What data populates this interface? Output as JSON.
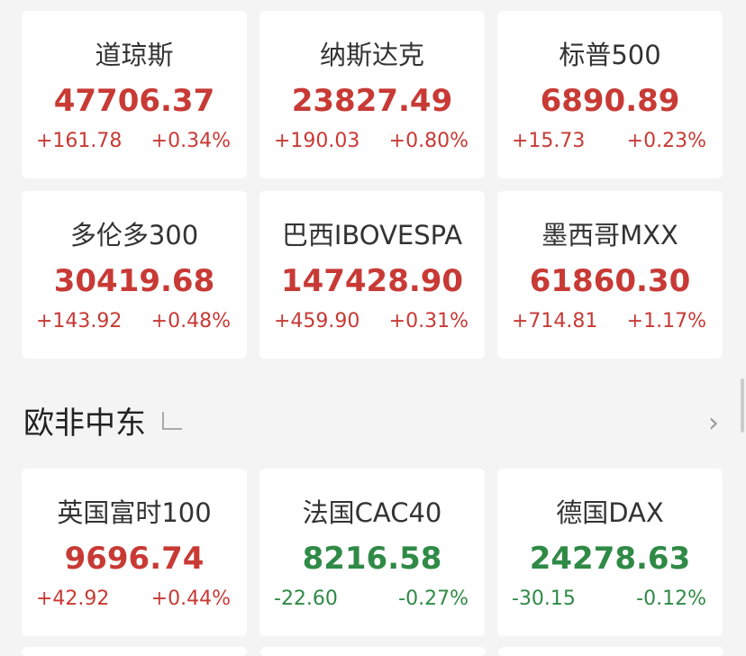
{
  "americas": [
    {
      "name": "道琼斯",
      "price": "47706.37",
      "change": "+161.78",
      "pct": "+0.34%",
      "dir": "up"
    },
    {
      "name": "纳斯达克",
      "price": "23827.49",
      "change": "+190.03",
      "pct": "+0.80%",
      "dir": "up"
    },
    {
      "name": "标普500",
      "price": "6890.89",
      "change": "+15.73",
      "pct": "+0.23%",
      "dir": "up"
    },
    {
      "name": "多伦多300",
      "price": "30419.68",
      "change": "+143.92",
      "pct": "+0.48%",
      "dir": "up"
    },
    {
      "name": "巴西IBOVESPA",
      "price": "147428.90",
      "change": "+459.90",
      "pct": "+0.31%",
      "dir": "up"
    },
    {
      "name": "墨西哥MXX",
      "price": "61860.30",
      "change": "+714.81",
      "pct": "+1.17%",
      "dir": "up"
    }
  ],
  "section": {
    "title": "欧非中东",
    "share_icon": "share-icon",
    "more_icon": "chevron-right-icon"
  },
  "europe": [
    {
      "name": "英国富时100",
      "price": "9696.74",
      "change": "+42.92",
      "pct": "+0.44%",
      "dir": "up"
    },
    {
      "name": "法国CAC40",
      "price": "8216.58",
      "change": "-22.60",
      "pct": "-0.27%",
      "dir": "down"
    },
    {
      "name": "德国DAX",
      "price": "24278.63",
      "change": "-30.15",
      "pct": "-0.12%",
      "dir": "down"
    }
  ],
  "colors": {
    "up": "#c83a35",
    "down": "#2f8a46"
  }
}
